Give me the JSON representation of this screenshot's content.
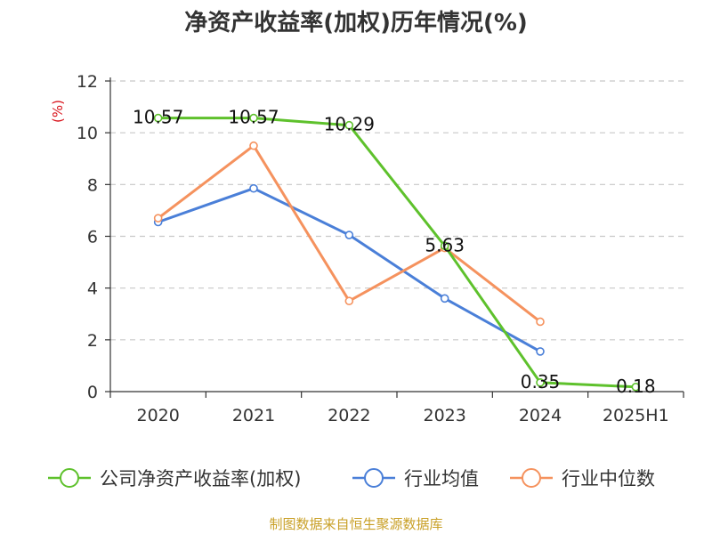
{
  "chart_data": {
    "type": "line",
    "title": "净资产收益率(加权)历年情况(%)",
    "ylabel": "(%)",
    "categories": [
      "2020",
      "2021",
      "2022",
      "2023",
      "2024",
      "2025H1"
    ],
    "ylim": [
      0,
      12
    ],
    "yticks": [
      "0",
      "2",
      "4",
      "6",
      "8",
      "10",
      "12"
    ],
    "grid": true,
    "legend_position": "bottom",
    "series": [
      {
        "name": "公司净资产收益率(加权)",
        "color": "#5ec12c",
        "values": [
          10.57,
          10.57,
          10.29,
          5.63,
          0.35,
          0.18
        ],
        "labels": [
          "10.57",
          "10.57",
          "10.29",
          "5.63",
          "0.35",
          "0.18"
        ]
      },
      {
        "name": "行业均值",
        "color": "#4a7fd8",
        "values": [
          6.55,
          7.85,
          6.05,
          3.6,
          1.55,
          null
        ]
      },
      {
        "name": "行业中位数",
        "color": "#f5925e",
        "values": [
          6.7,
          9.5,
          3.5,
          5.55,
          2.7,
          null
        ]
      }
    ]
  },
  "source": "制图数据来自恒生聚源数据库"
}
